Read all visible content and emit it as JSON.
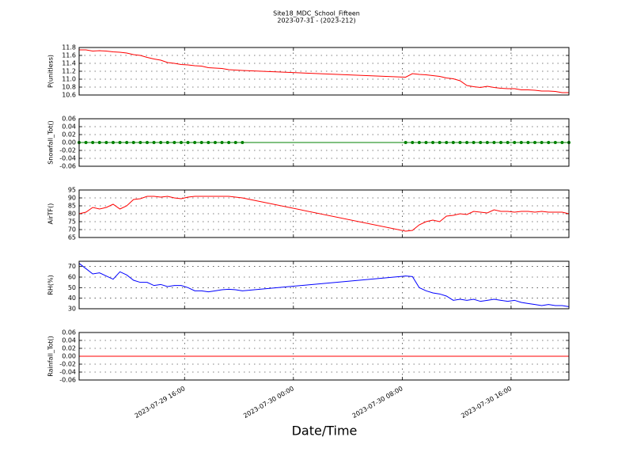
{
  "chart_data": [
    {
      "type": "line",
      "title": "Site18_MDC_School_Fifteen",
      "subtitle": "2023-07-31 - (2023-212)",
      "ylabel": "P(unitless)",
      "color": "#ff0000",
      "grid": true,
      "xlim": [
        "2023-07-29 08:15",
        "2023-07-30 20:15"
      ],
      "xticks": [
        "2023-07-29 16:00",
        "2023-07-30 00:00",
        "2023-07-30 08:00",
        "2023-07-30 16:00"
      ],
      "ylim": [
        10.6,
        11.8
      ],
      "yticks": [
        10.6,
        10.8,
        {
          "value": 11,
          "label": "11.0"
        },
        11.2,
        11.4,
        11.6,
        11.8
      ],
      "x": [
        "2023-07-29 08:15",
        "2023-07-29 08:45",
        "2023-07-29 09:15",
        "2023-07-29 09:45",
        "2023-07-29 10:15",
        "2023-07-29 10:45",
        "2023-07-29 11:15",
        "2023-07-29 11:45",
        "2023-07-29 12:15",
        "2023-07-29 12:45",
        "2023-07-29 13:15",
        "2023-07-29 13:45",
        "2023-07-29 14:15",
        "2023-07-29 14:45",
        "2023-07-29 15:15",
        "2023-07-29 15:45",
        "2023-07-29 16:15",
        "2023-07-29 16:45",
        "2023-07-29 17:15",
        "2023-07-29 17:45",
        "2023-07-29 18:15",
        "2023-07-29 18:45",
        "2023-07-29 19:15",
        "2023-07-29 19:45",
        "2023-07-29 20:15",
        "2023-07-30 08:15",
        "2023-07-30 08:45",
        "2023-07-30 09:15",
        "2023-07-30 09:45",
        "2023-07-30 10:15",
        "2023-07-30 10:45",
        "2023-07-30 11:15",
        "2023-07-30 11:45",
        "2023-07-30 12:15",
        "2023-07-30 12:45",
        "2023-07-30 13:15",
        "2023-07-30 13:45",
        "2023-07-30 14:15",
        "2023-07-30 14:45",
        "2023-07-30 15:15",
        "2023-07-30 15:45",
        "2023-07-30 16:15",
        "2023-07-30 16:45",
        "2023-07-30 17:15",
        "2023-07-30 17:45",
        "2023-07-30 18:15",
        "2023-07-30 18:45",
        "2023-07-30 19:15",
        "2023-07-30 19:45",
        "2023-07-30 20:15"
      ],
      "values": [
        11.74,
        11.74,
        11.71,
        11.72,
        11.71,
        11.69,
        11.68,
        11.66,
        11.62,
        11.6,
        11.55,
        11.51,
        11.48,
        11.42,
        11.4,
        11.37,
        11.36,
        11.34,
        11.33,
        11.29,
        11.28,
        11.27,
        11.24,
        11.23,
        11.22,
        11.05,
        11.14,
        11.12,
        11.11,
        11.09,
        11.07,
        11.03,
        11.01,
        10.96,
        10.84,
        10.81,
        10.79,
        10.82,
        10.79,
        10.77,
        10.76,
        10.76,
        10.73,
        10.73,
        10.72,
        10.7,
        10.7,
        10.69,
        10.66,
        10.66
      ]
    },
    {
      "type": "line",
      "ylabel": "Snowfall_Tot()",
      "color": "#008000",
      "markers": true,
      "grid": true,
      "xlim": [
        "2023-07-29 08:15",
        "2023-07-30 20:15"
      ],
      "xticks": [
        "2023-07-29 16:00",
        "2023-07-30 00:00",
        "2023-07-30 08:00",
        "2023-07-30 16:00"
      ],
      "ylim": [
        -0.06,
        0.06
      ],
      "yticks": [
        -0.06,
        -0.04,
        -0.02,
        {
          "value": 0,
          "label": "0.00"
        },
        0.02,
        0.04,
        0.06
      ],
      "x": [
        "2023-07-29 08:15",
        "2023-07-29 08:45",
        "2023-07-29 09:15",
        "2023-07-29 09:45",
        "2023-07-29 10:15",
        "2023-07-29 10:45",
        "2023-07-29 11:15",
        "2023-07-29 11:45",
        "2023-07-29 12:15",
        "2023-07-29 12:45",
        "2023-07-29 13:15",
        "2023-07-29 13:45",
        "2023-07-29 14:15",
        "2023-07-29 14:45",
        "2023-07-29 15:15",
        "2023-07-29 15:45",
        "2023-07-29 16:15",
        "2023-07-29 16:45",
        "2023-07-29 17:15",
        "2023-07-29 17:45",
        "2023-07-29 18:15",
        "2023-07-29 18:45",
        "2023-07-29 19:15",
        "2023-07-29 19:45",
        "2023-07-29 20:15",
        "2023-07-30 08:15",
        "2023-07-30 08:45",
        "2023-07-30 09:15",
        "2023-07-30 09:45",
        "2023-07-30 10:15",
        "2023-07-30 10:45",
        "2023-07-30 11:15",
        "2023-07-30 11:45",
        "2023-07-30 12:15",
        "2023-07-30 12:45",
        "2023-07-30 13:15",
        "2023-07-30 13:45",
        "2023-07-30 14:15",
        "2023-07-30 14:45",
        "2023-07-30 15:15",
        "2023-07-30 15:45",
        "2023-07-30 16:15",
        "2023-07-30 16:45",
        "2023-07-30 17:15",
        "2023-07-30 17:45",
        "2023-07-30 18:15",
        "2023-07-30 18:45",
        "2023-07-30 19:15",
        "2023-07-30 19:45",
        "2023-07-30 20:15"
      ],
      "values": [
        0,
        0,
        0,
        0,
        0,
        0,
        0,
        0,
        0,
        0,
        0,
        0,
        0,
        0,
        0,
        0,
        0,
        0,
        0,
        0,
        0,
        0,
        0,
        0,
        0,
        0,
        0,
        0,
        0,
        0,
        0,
        0,
        0,
        0,
        0,
        0,
        0,
        0,
        0,
        0,
        0,
        0,
        0,
        0,
        0,
        0,
        0,
        0,
        0,
        0
      ]
    },
    {
      "type": "line",
      "ylabel": "AirTF()",
      "color": "#ff0000",
      "grid": true,
      "xlim": [
        "2023-07-29 08:15",
        "2023-07-30 20:15"
      ],
      "xticks": [
        "2023-07-29 16:00",
        "2023-07-30 00:00",
        "2023-07-30 08:00",
        "2023-07-30 16:00"
      ],
      "ylim": [
        65,
        95
      ],
      "yticks": [
        65,
        70,
        75,
        80,
        85,
        90,
        95
      ],
      "x": [
        "2023-07-29 08:15",
        "2023-07-29 08:45",
        "2023-07-29 09:15",
        "2023-07-29 09:45",
        "2023-07-29 10:15",
        "2023-07-29 10:45",
        "2023-07-29 11:15",
        "2023-07-29 11:45",
        "2023-07-29 12:15",
        "2023-07-29 12:45",
        "2023-07-29 13:15",
        "2023-07-29 13:45",
        "2023-07-29 14:15",
        "2023-07-29 14:45",
        "2023-07-29 15:15",
        "2023-07-29 15:45",
        "2023-07-29 16:15",
        "2023-07-29 16:45",
        "2023-07-29 17:15",
        "2023-07-29 17:45",
        "2023-07-29 18:15",
        "2023-07-29 18:45",
        "2023-07-29 19:15",
        "2023-07-29 19:45",
        "2023-07-29 20:15",
        "2023-07-30 08:15",
        "2023-07-30 08:45",
        "2023-07-30 09:15",
        "2023-07-30 09:45",
        "2023-07-30 10:15",
        "2023-07-30 10:45",
        "2023-07-30 11:15",
        "2023-07-30 11:45",
        "2023-07-30 12:15",
        "2023-07-30 12:45",
        "2023-07-30 13:15",
        "2023-07-30 13:45",
        "2023-07-30 14:15",
        "2023-07-30 14:45",
        "2023-07-30 15:15",
        "2023-07-30 15:45",
        "2023-07-30 16:15",
        "2023-07-30 16:45",
        "2023-07-30 17:15",
        "2023-07-30 17:45",
        "2023-07-30 18:15",
        "2023-07-30 18:45",
        "2023-07-30 19:15",
        "2023-07-30 19:45",
        "2023-07-30 20:15"
      ],
      "values": [
        80,
        81,
        84,
        83,
        84,
        86,
        83,
        85,
        89,
        89.5,
        91,
        91,
        90.5,
        91,
        90,
        89.5,
        90.5,
        91,
        91,
        91,
        91,
        91,
        91,
        90.5,
        90,
        69,
        69.5,
        73,
        75,
        76,
        75,
        78.5,
        79,
        80,
        79.5,
        81.5,
        81,
        80.5,
        82.5,
        81.5,
        81.5,
        81,
        81.5,
        81.5,
        81,
        81.5,
        81,
        81,
        81,
        80
      ]
    },
    {
      "type": "line",
      "ylabel": "RH(%)",
      "color": "#0000ff",
      "grid": true,
      "xlim": [
        "2023-07-29 08:15",
        "2023-07-30 20:15"
      ],
      "xticks": [
        "2023-07-29 16:00",
        "2023-07-30 00:00",
        "2023-07-30 08:00",
        "2023-07-30 16:00"
      ],
      "ylim": [
        30,
        75
      ],
      "yticks": [
        30,
        40,
        50,
        60,
        70
      ],
      "x": [
        "2023-07-29 08:15",
        "2023-07-29 08:45",
        "2023-07-29 09:15",
        "2023-07-29 09:45",
        "2023-07-29 10:15",
        "2023-07-29 10:45",
        "2023-07-29 11:15",
        "2023-07-29 11:45",
        "2023-07-29 12:15",
        "2023-07-29 12:45",
        "2023-07-29 13:15",
        "2023-07-29 13:45",
        "2023-07-29 14:15",
        "2023-07-29 14:45",
        "2023-07-29 15:15",
        "2023-07-29 15:45",
        "2023-07-29 16:15",
        "2023-07-29 16:45",
        "2023-07-29 17:15",
        "2023-07-29 17:45",
        "2023-07-29 18:15",
        "2023-07-29 18:45",
        "2023-07-29 19:15",
        "2023-07-29 19:45",
        "2023-07-29 20:15",
        "2023-07-30 08:15",
        "2023-07-30 08:45",
        "2023-07-30 09:15",
        "2023-07-30 09:45",
        "2023-07-30 10:15",
        "2023-07-30 10:45",
        "2023-07-30 11:15",
        "2023-07-30 11:45",
        "2023-07-30 12:15",
        "2023-07-30 12:45",
        "2023-07-30 13:15",
        "2023-07-30 13:45",
        "2023-07-30 14:15",
        "2023-07-30 14:45",
        "2023-07-30 15:15",
        "2023-07-30 15:45",
        "2023-07-30 16:15",
        "2023-07-30 16:45",
        "2023-07-30 17:15",
        "2023-07-30 17:45",
        "2023-07-30 18:15",
        "2023-07-30 18:45",
        "2023-07-30 19:15",
        "2023-07-30 19:45",
        "2023-07-30 20:15"
      ],
      "values": [
        73,
        68,
        63,
        64,
        61,
        58,
        65,
        62,
        57,
        55,
        55,
        52,
        53,
        51,
        52,
        52,
        50,
        47,
        47,
        46,
        47,
        48,
        48.5,
        48,
        47,
        61,
        60.5,
        50,
        47,
        45,
        44,
        42,
        38,
        39,
        38,
        39,
        37,
        38,
        39,
        38,
        37,
        38,
        36,
        35,
        34,
        33,
        34,
        33,
        33,
        32
      ]
    },
    {
      "type": "line",
      "ylabel": "Rainfall_Tot()",
      "xlabel": "Date/Time",
      "color": "#ff0000",
      "grid": true,
      "xlim": [
        "2023-07-29 08:15",
        "2023-07-30 20:15"
      ],
      "xticks": [
        "2023-07-29 16:00",
        "2023-07-30 00:00",
        "2023-07-30 08:00",
        "2023-07-30 16:00"
      ],
      "ylim": [
        -0.06,
        0.06
      ],
      "yticks": [
        -0.06,
        -0.04,
        -0.02,
        {
          "value": 0,
          "label": "0.00"
        },
        0.02,
        0.04,
        0.06
      ],
      "x": [
        "2023-07-29 08:15",
        "2023-07-29 08:45",
        "2023-07-29 09:15",
        "2023-07-29 09:45",
        "2023-07-29 10:15",
        "2023-07-29 10:45",
        "2023-07-29 11:15",
        "2023-07-29 11:45",
        "2023-07-29 12:15",
        "2023-07-29 12:45",
        "2023-07-29 13:15",
        "2023-07-29 13:45",
        "2023-07-29 14:15",
        "2023-07-29 14:45",
        "2023-07-29 15:15",
        "2023-07-29 15:45",
        "2023-07-29 16:15",
        "2023-07-29 16:45",
        "2023-07-29 17:15",
        "2023-07-29 17:45",
        "2023-07-29 18:15",
        "2023-07-29 18:45",
        "2023-07-29 19:15",
        "2023-07-29 19:45",
        "2023-07-29 20:15",
        "2023-07-30 08:15",
        "2023-07-30 08:45",
        "2023-07-30 09:15",
        "2023-07-30 09:45",
        "2023-07-30 10:15",
        "2023-07-30 10:45",
        "2023-07-30 11:15",
        "2023-07-30 11:45",
        "2023-07-30 12:15",
        "2023-07-30 12:45",
        "2023-07-30 13:15",
        "2023-07-30 13:45",
        "2023-07-30 14:15",
        "2023-07-30 14:45",
        "2023-07-30 15:15",
        "2023-07-30 15:45",
        "2023-07-30 16:15",
        "2023-07-30 16:45",
        "2023-07-30 17:15",
        "2023-07-30 17:45",
        "2023-07-30 18:15",
        "2023-07-30 18:45",
        "2023-07-30 19:15",
        "2023-07-30 19:45",
        "2023-07-30 20:15"
      ],
      "values": [
        0,
        0,
        0,
        0,
        0,
        0,
        0,
        0,
        0,
        0,
        0,
        0,
        0,
        0,
        0,
        0,
        0,
        0,
        0,
        0,
        0,
        0,
        0,
        0,
        0,
        0,
        0,
        0,
        0,
        0,
        0,
        0,
        0,
        0,
        0,
        0,
        0,
        0,
        0,
        0,
        0,
        0,
        0,
        0,
        0,
        0,
        0,
        0,
        0,
        0
      ]
    }
  ]
}
